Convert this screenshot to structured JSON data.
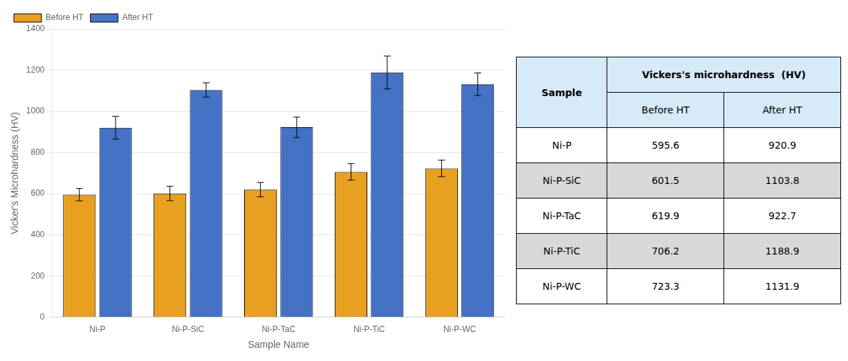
{
  "chart_data": {
    "type": "bar",
    "categories": [
      "Ni-P",
      "Ni-P-SiC",
      "Ni-P-TaC",
      "Ni-P-TiC",
      "Ni-P-WC"
    ],
    "series": [
      {
        "name": "Before HT",
        "color": "#E8A020",
        "values": [
          595.6,
          601.5,
          619.9,
          706.2,
          723.3
        ],
        "errors": [
          30,
          35,
          35,
          40,
          40
        ]
      },
      {
        "name": "After HT",
        "color": "#4472C4",
        "values": [
          920.9,
          1103.8,
          922.7,
          1188.9,
          1131.9
        ],
        "errors": [
          55,
          35,
          50,
          80,
          55
        ]
      }
    ],
    "xlabel": "Sample Name",
    "ylabel": "Vicker's Microhardness (HV)",
    "ylim": [
      0,
      1400
    ],
    "yticks": [
      0,
      200,
      400,
      600,
      800,
      1000,
      1200,
      1400
    ],
    "grid": true,
    "legend": "upper left"
  },
  "table": {
    "header": "Vickers's microhardness  (HV)",
    "columns": [
      "Sample",
      "Before HT",
      "After HT"
    ],
    "rows": [
      [
        "Ni-P",
        "595.6",
        "920.9"
      ],
      [
        "Ni-P-SiC",
        "601.5",
        "1103.8"
      ],
      [
        "Ni-P-TaC",
        "619.9",
        "922.7"
      ],
      [
        "Ni-P-TiC",
        "706.2",
        "1188.9"
      ],
      [
        "Ni-P-WC",
        "723.3",
        "1131.9"
      ]
    ]
  }
}
